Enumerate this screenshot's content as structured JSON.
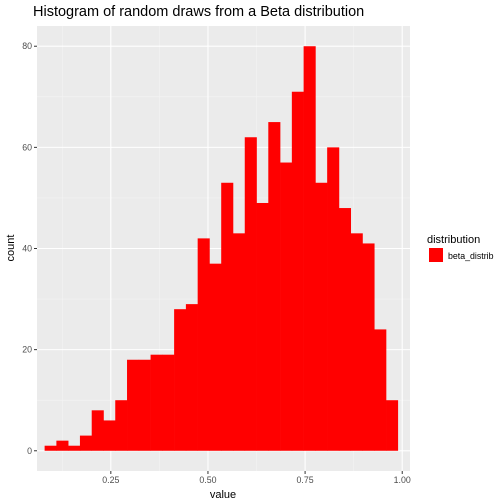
{
  "chart_data": {
    "type": "bar",
    "title": "Histogram of random draws from a Beta distribution",
    "xlabel": "value",
    "ylabel": "count",
    "xlim": [
      0.06,
      1.02
    ],
    "ylim": [
      -4,
      84
    ],
    "x_ticks": [
      0.25,
      0.5,
      0.75,
      1.0
    ],
    "x_tick_labels": [
      "0.25",
      "0.50",
      "0.75",
      "1.00"
    ],
    "y_ticks": [
      0,
      20,
      40,
      60,
      80
    ],
    "y_tick_labels": [
      "0",
      "20",
      "40",
      "60",
      "80"
    ],
    "bin_start": 0.0796,
    "bin_width": 0.0303,
    "values": [
      1,
      2,
      1,
      3,
      8,
      6,
      10,
      18,
      18,
      19,
      19,
      28,
      29,
      42,
      37,
      53,
      43,
      62,
      49,
      65,
      57,
      71,
      80,
      53,
      60,
      48,
      43,
      41,
      24,
      10
    ],
    "fill_color": "#ff0000",
    "panel_background": "#ebebeb",
    "grid": true,
    "legend": {
      "title": "distribution",
      "entries": [
        {
          "label": "beta_distrib",
          "color": "#ff0000"
        }
      ],
      "position": "right"
    }
  }
}
